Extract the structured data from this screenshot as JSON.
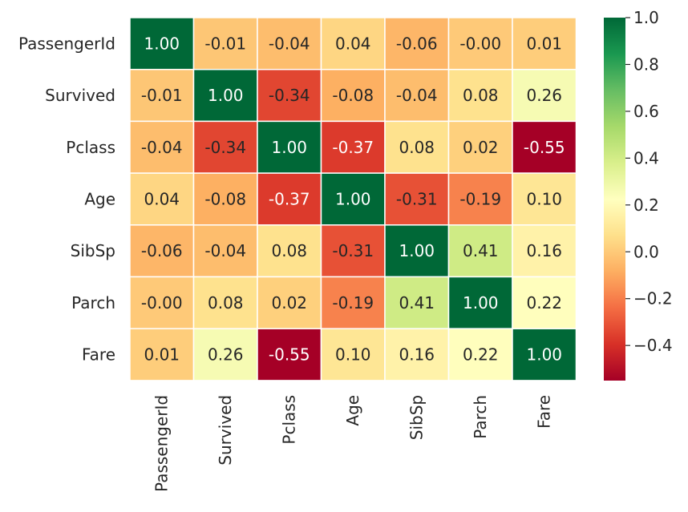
{
  "chart_data": {
    "type": "heatmap",
    "title": "",
    "rows": [
      "PassengerId",
      "Survived",
      "Pclass",
      "Age",
      "SibSp",
      "Parch",
      "Fare"
    ],
    "columns": [
      "PassengerId",
      "Survived",
      "Pclass",
      "Age",
      "SibSp",
      "Parch",
      "Fare"
    ],
    "values": [
      [
        1.0,
        -0.01,
        -0.04,
        0.04,
        -0.06,
        -0.0,
        0.01
      ],
      [
        -0.01,
        1.0,
        -0.34,
        -0.08,
        -0.04,
        0.08,
        0.26
      ],
      [
        -0.04,
        -0.34,
        1.0,
        -0.37,
        0.08,
        0.02,
        -0.55
      ],
      [
        0.04,
        -0.08,
        -0.37,
        1.0,
        -0.31,
        -0.19,
        0.1
      ],
      [
        -0.06,
        -0.04,
        0.08,
        -0.31,
        1.0,
        0.41,
        0.16
      ],
      [
        -0.0,
        0.08,
        0.02,
        -0.19,
        0.41,
        1.0,
        0.22
      ],
      [
        0.01,
        0.26,
        -0.55,
        0.1,
        0.16,
        0.22,
        1.0
      ]
    ],
    "value_format": "0.00",
    "colormap": "RdYlGn",
    "vmin": -0.55,
    "vmax": 1.0,
    "colorbar": {
      "ticks": [
        1.0,
        0.8,
        0.6,
        0.4,
        0.2,
        0.0,
        -0.2,
        -0.4
      ],
      "tick_labels": [
        "1.0",
        "0.8",
        "0.6",
        "0.4",
        "0.2",
        "0.0",
        "−0.2",
        "−0.4"
      ],
      "placement": "right"
    },
    "linecolor": "#ffffff"
  }
}
